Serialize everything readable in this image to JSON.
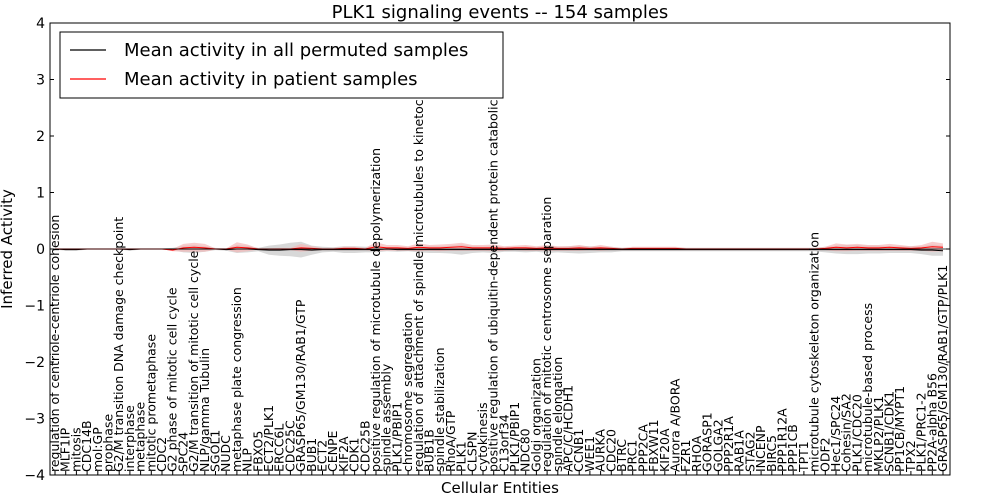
{
  "chart_data": {
    "type": "line",
    "title": "PLK1 signaling events -- 154 samples",
    "xlabel": "Cellular Entities",
    "ylabel": "Inferred Activity",
    "ylim": [
      -4,
      4
    ],
    "yticks": [
      -4,
      -3,
      -2,
      -1,
      0,
      1,
      2,
      3,
      4
    ],
    "ytick_labels": [
      "−4",
      "−3",
      "−2",
      "−1",
      "0",
      "1",
      "2",
      "3",
      "4"
    ],
    "grid": false,
    "legend_position": "top-left",
    "legend": [
      {
        "label": "Mean activity in all permuted samples",
        "color": "#000000"
      },
      {
        "label": "Mean activity in patient samples",
        "color": "#ff0000"
      }
    ],
    "colors": {
      "permuted": "#000000",
      "patient": "#ff0000",
      "patient_band": "#f4b8b8",
      "permuted_band": "#c8c8c8"
    },
    "categories": [
      "regulation of centriole-centriole cohesion",
      "MLF1IP",
      "mitosis",
      "CDC14B",
      "mol:GP",
      "prophase",
      "G2/M transition DNA damage checkpoint",
      "interphase",
      "metaphase",
      "mitotic prometaphase",
      "CDC2",
      "G2 phase of mitotic cell cycle",
      "SPC24",
      "G2/M transition of mitotic cell cycle",
      "NLP/gamma Tubulin",
      "SGOL1",
      "NUDC",
      "metaphase plate congression",
      "NLP",
      "FBXO5",
      "ECT2/PLK1",
      "ERCC6L",
      "CDC25C",
      "GRASP65/GM130/RAB1/GTP",
      "BUB1",
      "ECT2",
      "CENPE",
      "KIF2A",
      "CDK1",
      "CDC25B",
      "positive regulation of microtubule depolymerization",
      "spindle assembly",
      "PLK1/PBIP1",
      "chromosome segregation",
      "regulation of attachment of spindle microtubules to kinetochore",
      "BUB1B",
      "spindle stabilization",
      "RhoA/GTP",
      "PLK1",
      "CLSPN",
      "cytokinesis",
      "positive regulation of ubiquitin-dependent protein catabolic process",
      "C13orf34",
      "PLK1/PBIP1",
      "NDC80",
      "Golgi organization",
      "regulation of mitotic centrosome separation",
      "spindle elongation",
      "APC/C/HCDH1",
      "CCNB1",
      "WEE1",
      "AURKA",
      "CDC20",
      "BTRC",
      "PRC1",
      "PPP2CA",
      "FBXW11",
      "KIF20A",
      "Aurora A/BORA",
      "FZR1",
      "RHOA",
      "GORASP1",
      "GOLGA2",
      "PPP2R1A",
      "RAB1A",
      "STAG2",
      "INCENP",
      "BIRC5",
      "PPP1R12A",
      "PPP1CB",
      "TPT1",
      "microtubule cytoskeleton organization",
      "ODF2",
      "Hec1/SPC24",
      "Cohesin/SA2",
      "PLK1/CDC20",
      "microtubule-based process",
      "MKLP2/PLK1",
      "SCNB1/CDK1",
      "PP1CB/MYPT1",
      "TPX2",
      "PLK1/PRC1-2",
      "PP2A-alpha B56",
      "GRASP65/GM130/RAB1/GTP/PLK1"
    ],
    "series": [
      {
        "name": "Mean activity in all permuted samples",
        "values": [
          0,
          -0.01,
          -0.01,
          0,
          0,
          0,
          0,
          -0.01,
          0,
          0,
          0,
          0,
          0,
          0,
          0,
          0,
          -0.01,
          0,
          0,
          -0.01,
          -0.02,
          -0.02,
          -0.01,
          -0.01,
          -0.02,
          -0.01,
          -0.01,
          -0.01,
          -0.01,
          -0.01,
          -0.01,
          0,
          -0.01,
          -0.01,
          -0.01,
          -0.01,
          -0.01,
          -0.01,
          -0.01,
          -0.01,
          -0.01,
          -0.01,
          -0.01,
          -0.01,
          -0.01,
          -0.01,
          -0.01,
          -0.01,
          -0.01,
          -0.01,
          -0.01,
          -0.01,
          -0.01,
          -0.01,
          -0.01,
          -0.01,
          -0.01,
          -0.01,
          -0.01,
          -0.01,
          -0.01,
          -0.01,
          -0.01,
          -0.01,
          -0.01,
          -0.01,
          -0.01,
          -0.01,
          -0.01,
          -0.01,
          -0.01,
          -0.01,
          -0.01,
          -0.01,
          -0.01,
          -0.01,
          -0.01,
          -0.01,
          -0.01,
          -0.01,
          -0.01,
          -0.02,
          -0.02,
          -0.03
        ]
      },
      {
        "name": "Mean activity in patient samples",
        "values": [
          0,
          0,
          0,
          0,
          0,
          0,
          0,
          0,
          0,
          0,
          0,
          -0.02,
          0.02,
          0.03,
          0.02,
          0,
          0,
          0.03,
          0.02,
          0,
          0,
          0,
          0,
          0.02,
          0.01,
          0,
          0,
          0.01,
          0.01,
          0,
          0.04,
          0.02,
          0.02,
          0.01,
          0.03,
          0.02,
          0.02,
          0.03,
          0.04,
          0.02,
          0.02,
          0.02,
          0.01,
          0.02,
          0.02,
          0.01,
          0.02,
          0.01,
          0.01,
          0.02,
          0.01,
          0.02,
          0.01,
          0,
          0.01,
          0.01,
          0.01,
          0.01,
          0.01,
          0,
          0,
          0,
          0,
          0,
          0,
          0,
          0,
          0,
          0,
          0,
          0,
          0,
          0.01,
          0.03,
          0.02,
          0.03,
          0.02,
          0.02,
          0.03,
          0.02,
          0.01,
          0.02,
          0.04,
          0.03
        ]
      }
    ],
    "patient_band": [
      0,
      0,
      0,
      0,
      0,
      0,
      0,
      0,
      0,
      0,
      0,
      0.02,
      0.07,
      0.08,
      0.07,
      0.01,
      0.01,
      0.09,
      0.06,
      0.01,
      0.01,
      0.02,
      0.02,
      0.07,
      0.04,
      0.02,
      0.02,
      0.03,
      0.03,
      0.02,
      0.08,
      0.05,
      0.05,
      0.04,
      0.07,
      0.05,
      0.06,
      0.06,
      0.07,
      0.05,
      0.05,
      0.06,
      0.04,
      0.04,
      0.05,
      0.04,
      0.05,
      0.04,
      0.04,
      0.05,
      0.03,
      0.05,
      0.03,
      0.02,
      0.03,
      0.03,
      0.03,
      0.03,
      0.03,
      0.02,
      0.02,
      0.02,
      0.02,
      0.02,
      0.02,
      0.02,
      0.02,
      0.02,
      0.02,
      0.02,
      0.02,
      0.02,
      0.03,
      0.07,
      0.06,
      0.06,
      0.05,
      0.05,
      0.06,
      0.05,
      0.04,
      0.05,
      0.09,
      0.07
    ],
    "permuted_band": [
      0.01,
      0.02,
      0.02,
      0.01,
      0.01,
      0.01,
      0.01,
      0.02,
      0.01,
      0.01,
      0.01,
      0.02,
      0.06,
      0.07,
      0.05,
      0.02,
      0.02,
      0.07,
      0.06,
      0.03,
      0.08,
      0.1,
      0.12,
      0.14,
      0.08,
      0.05,
      0.04,
      0.06,
      0.06,
      0.05,
      0.05,
      0.04,
      0.04,
      0.03,
      0.05,
      0.06,
      0.06,
      0.07,
      0.09,
      0.06,
      0.05,
      0.06,
      0.04,
      0.04,
      0.05,
      0.04,
      0.06,
      0.05,
      0.06,
      0.07,
      0.06,
      0.05,
      0.05,
      0.03,
      0.03,
      0.03,
      0.03,
      0.03,
      0.03,
      0.03,
      0.03,
      0.03,
      0.03,
      0.03,
      0.03,
      0.03,
      0.03,
      0.03,
      0.03,
      0.03,
      0.03,
      0.03,
      0.05,
      0.07,
      0.08,
      0.08,
      0.07,
      0.07,
      0.06,
      0.06,
      0.06,
      0.07,
      0.1,
      0.09
    ]
  }
}
